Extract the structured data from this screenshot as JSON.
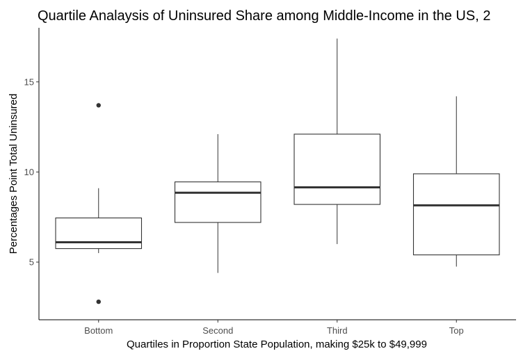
{
  "chart_data": {
    "type": "boxplot",
    "title": "Quartile Analaysis of Uninsured Share among Middle-Income in the US, 2",
    "xlabel": "Quartiles in Proportion State Population, making $25k to $49,999",
    "ylabel": "Percentages Point Total Uninsured",
    "ylim": [
      1.8,
      18.0
    ],
    "yticks": [
      5,
      10,
      15
    ],
    "grid": false,
    "categories": [
      "Bottom",
      "Second",
      "Third",
      "Top"
    ],
    "boxes": [
      {
        "category": "Bottom",
        "whisker_low": 5.5,
        "q1": 5.75,
        "median": 6.1,
        "q3": 7.45,
        "whisker_high": 9.1,
        "outliers": [
          2.8,
          13.7
        ]
      },
      {
        "category": "Second",
        "whisker_low": 4.4,
        "q1": 7.2,
        "median": 8.85,
        "q3": 9.45,
        "whisker_high": 12.1,
        "outliers": []
      },
      {
        "category": "Third",
        "whisker_low": 6.0,
        "q1": 8.2,
        "median": 9.15,
        "q3": 12.1,
        "whisker_high": 17.4,
        "outliers": []
      },
      {
        "category": "Top",
        "whisker_low": 4.75,
        "q1": 5.4,
        "median": 8.15,
        "q3": 9.9,
        "whisker_high": 14.2,
        "outliers": []
      }
    ]
  }
}
